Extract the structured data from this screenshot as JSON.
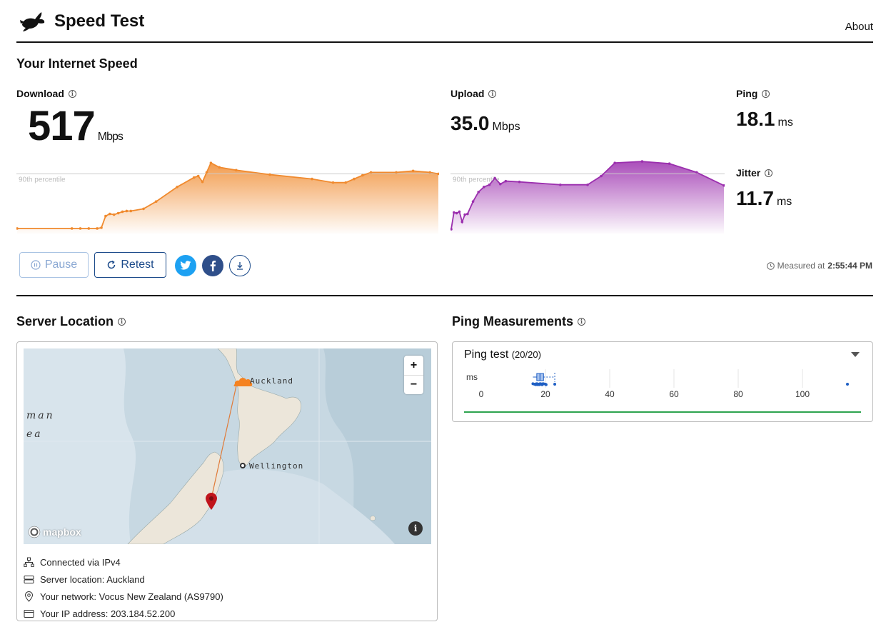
{
  "header": {
    "title": "Speed Test",
    "about_label": "About"
  },
  "speed_section": {
    "title": "Your Internet Speed"
  },
  "download": {
    "label": "Download",
    "value": "517",
    "unit": "Mbps"
  },
  "upload": {
    "label": "Upload",
    "value": "35.0",
    "unit": "Mbps"
  },
  "ping": {
    "label": "Ping",
    "value": "18.1",
    "unit": "ms"
  },
  "jitter": {
    "label": "Jitter",
    "value": "11.7",
    "unit": "ms"
  },
  "percentile_label": "90th percentile",
  "colors": {
    "download": "#f08a2e",
    "upload": "#9b2fae",
    "accent": "#1b4a8a",
    "twitter": "#1da1f2",
    "facebook": "#2f4f8a",
    "ping_line": "#2ea44f",
    "ping_dots": "#1f5fc4"
  },
  "actions": {
    "pause_label": "Pause",
    "retest_label": "Retest"
  },
  "measured": {
    "prefix": "Measured at",
    "time": "2:55:44 PM"
  },
  "server_section": {
    "title": "Server Location"
  },
  "map": {
    "city_a": "Auckland",
    "city_b": "Wellington",
    "ocean_1": "man",
    "ocean_2": "ea",
    "attribution": "mapbox",
    "zoom_in": "+",
    "zoom_out": "−"
  },
  "server_info": [
    {
      "icon": "network-icon",
      "text": "Connected via IPv4"
    },
    {
      "icon": "server-icon",
      "text": "Server location: Auckland"
    },
    {
      "icon": "location-pin-icon",
      "text": "Your network: Vocus New Zealand (AS9790)"
    },
    {
      "icon": "card-icon",
      "text": "Your IP address: 203.184.52.200"
    }
  ],
  "ping_section": {
    "title": "Ping Measurements",
    "test_label": "Ping test",
    "count": "(20/20)",
    "unit_label": "ms"
  },
  "chart_data": [
    {
      "type": "area",
      "name": "download",
      "p90": 0.78,
      "x": [
        0,
        0.13,
        0.15,
        0.17,
        0.19,
        0.2,
        0.21,
        0.22,
        0.23,
        0.24,
        0.25,
        0.26,
        0.27,
        0.3,
        0.33,
        0.38,
        0.42,
        0.43,
        0.44,
        0.45,
        0.46,
        0.48,
        0.52,
        0.6,
        0.7,
        0.75,
        0.78,
        0.8,
        0.82,
        0.84,
        0.9,
        0.94,
        0.98,
        1.0
      ],
      "values": [
        0.03,
        0.03,
        0.03,
        0.03,
        0.03,
        0.04,
        0.2,
        0.23,
        0.22,
        0.24,
        0.26,
        0.27,
        0.27,
        0.3,
        0.4,
        0.6,
        0.73,
        0.75,
        0.67,
        0.8,
        0.93,
        0.87,
        0.83,
        0.77,
        0.71,
        0.66,
        0.66,
        0.71,
        0.76,
        0.8,
        0.8,
        0.82,
        0.8,
        0.78
      ]
    },
    {
      "type": "area",
      "name": "upload",
      "p90": 0.78,
      "x": [
        0,
        0.01,
        0.02,
        0.03,
        0.04,
        0.05,
        0.06,
        0.08,
        0.1,
        0.12,
        0.14,
        0.16,
        0.18,
        0.2,
        0.25,
        0.4,
        0.5,
        0.55,
        0.6,
        0.7,
        0.8,
        0.9,
        1.0
      ],
      "values": [
        0.02,
        0.25,
        0.24,
        0.26,
        0.12,
        0.22,
        0.23,
        0.4,
        0.53,
        0.6,
        0.63,
        0.72,
        0.64,
        0.68,
        0.67,
        0.63,
        0.63,
        0.75,
        0.93,
        0.95,
        0.92,
        0.8,
        0.62
      ]
    },
    {
      "type": "scatter",
      "name": "ping",
      "xlim": [
        0,
        120
      ],
      "ticks": [
        0,
        20,
        40,
        60,
        80,
        100
      ],
      "values": [
        16.1,
        16.6,
        17.0,
        17.4,
        17.8,
        18.1,
        18.3,
        18.7,
        19.0,
        19.4,
        20.0,
        20.2,
        17.2,
        18.0,
        18.9,
        19.2,
        22.9,
        17.6,
        18.5,
        114.0
      ],
      "box": {
        "min": 16.1,
        "q1": 17.3,
        "median": 18.3,
        "q3": 19.4,
        "max": 22.9
      }
    }
  ]
}
